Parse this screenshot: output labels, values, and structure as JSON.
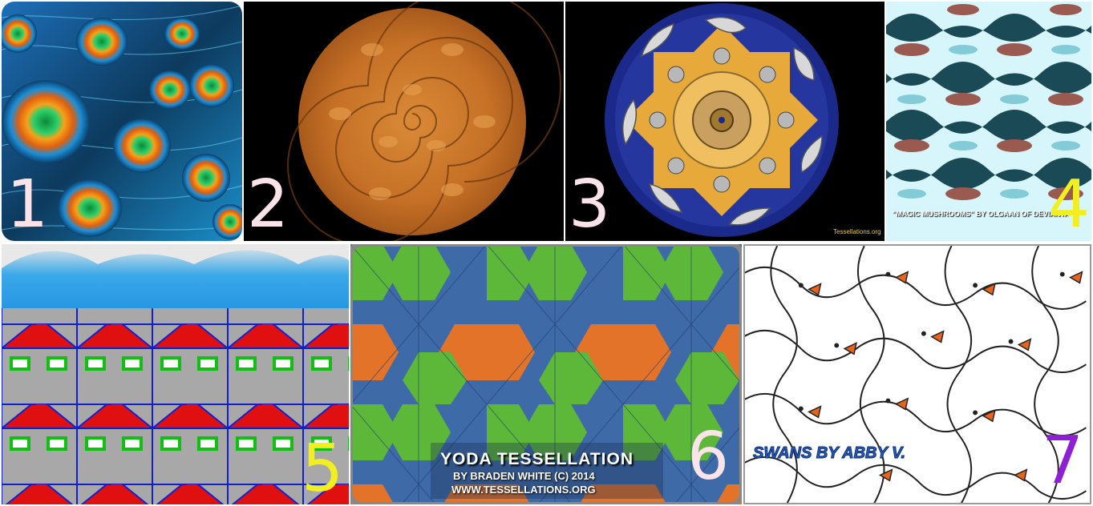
{
  "panels": [
    {
      "number": "1",
      "subject": "peacock feathers",
      "number_color": "#fbe3ea"
    },
    {
      "number": "2",
      "subject": "spiral of cats",
      "number_color": "#fbe3ea"
    },
    {
      "number": "3",
      "subject": "circular cat and mouse tessellation",
      "number_color": "#fbe3ea",
      "credit": "Tessellations.org"
    },
    {
      "number": "4",
      "subject": "wavy mushroom pattern",
      "number_color": "#f2ef21",
      "credit": "\"MAGIC MUSHROOMS\" BY OLGAAN OF DEVIANTART"
    },
    {
      "number": "5",
      "subject": "houses tessellation",
      "number_color": "#f2ef21"
    },
    {
      "number": "6",
      "subject": "yoda hexagon tessellation",
      "number_color": "#fbe3ea",
      "title": "YODA TESSELLATION",
      "byline": "BY BRADEN WHITE (C) 2014",
      "site": "WWW.TESSELLATIONS.ORG"
    },
    {
      "number": "7",
      "subject": "swans tessellation",
      "number_color": "#8e1fd4",
      "title": "SWANS BY ABBY V."
    }
  ]
}
